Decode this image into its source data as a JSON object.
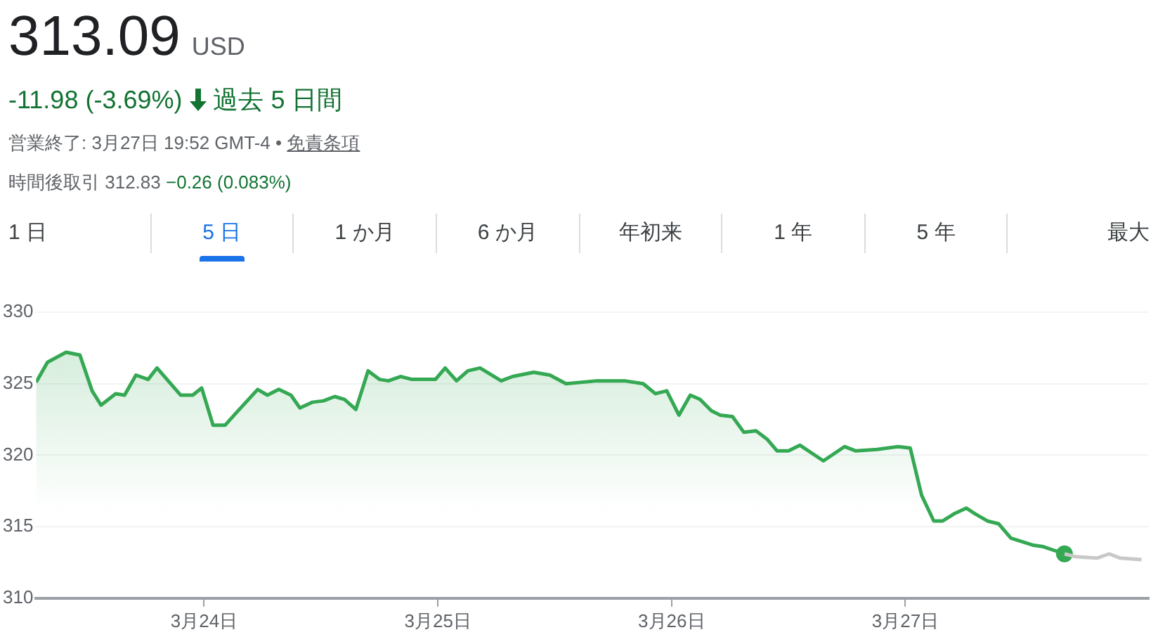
{
  "chart_data": {
    "type": "area",
    "title": "313.09",
    "annotations": [
      "USD",
      "-11.98 (-3.69%)",
      "過去 5 日間",
      "営業終了: 3月27日 19:52 GMT-4 •",
      "免責条項",
      "時間後取引 312.83",
      "−0.26 (0.083%)",
      "1 日",
      "5 日",
      "1 か月",
      "6 か月",
      "年初来",
      "1 年",
      "5 年",
      "最大"
    ],
    "xlim": [
      "--03-23T06:45",
      "--03-28T01:00"
    ],
    "xticks": [
      {
        "value": "--03-24",
        "label": "3月24日"
      },
      {
        "value": "--03-25",
        "label": "3月25日"
      },
      {
        "value": "--03-26",
        "label": "3月26日"
      },
      {
        "value": "--03-27",
        "label": "3月27日"
      }
    ],
    "ylim": [
      310,
      330
    ],
    "yticks": [
      310,
      315,
      320,
      325,
      330
    ],
    "grid": "y",
    "legend": false,
    "series": [
      {
        "color": "#34a853",
        "x": [
          "--03-23T06:45",
          "--03-23T07:55",
          "--03-23T09:50",
          "--03-23T11:15",
          "--03-23T12:30",
          "--03-23T13:25",
          "--03-23T14:55",
          "--03-23T15:50",
          "--03-23T17:00",
          "--03-23T18:15",
          "--03-23T19:10",
          "--03-23T21:35",
          "--03-23T22:50",
          "--03-23T23:45",
          "--03-24T00:55",
          "--03-24T02:10",
          "--03-24T03:05",
          "--03-24T05:30",
          "--03-24T06:30",
          "--03-24T07:40",
          "--03-24T08:55",
          "--03-24T09:50",
          "--03-24T11:05",
          "--03-24T12:15",
          "--03-24T13:25",
          "--03-24T14:25",
          "--03-24T15:35",
          "--03-24T16:50",
          "--03-24T18:00",
          "--03-24T18:55",
          "--03-24T20:10",
          "--03-24T21:20",
          "--03-24T23:45",
          "--03-25T00:45",
          "--03-25T01:55",
          "--03-25T03:05",
          "--03-25T04:20",
          "--03-25T06:30",
          "--03-25T07:40",
          "--03-25T09:50",
          "--03-25T11:30",
          "--03-25T13:10",
          "--03-25T16:20",
          "--03-25T19:10",
          "--03-25T21:05",
          "--03-25T22:20",
          "--03-25T23:30",
          "--03-26T00:45",
          "--03-26T01:55",
          "--03-26T02:55",
          "--03-26T04:05",
          "--03-26T05:00",
          "--03-26T06:15",
          "--03-26T07:25",
          "--03-26T08:40",
          "--03-26T09:50",
          "--03-26T10:50",
          "--03-26T12:00",
          "--03-26T13:10",
          "--03-26T15:35",
          "--03-26T17:45",
          "--03-26T18:55",
          "--03-26T21:05",
          "--03-26T23:15",
          "--03-27T00:30",
          "--03-27T01:40",
          "--03-27T02:55",
          "--03-27T03:50",
          "--03-27T05:00",
          "--03-27T06:15",
          "--03-27T07:10",
          "--03-27T08:25",
          "--03-27T09:35",
          "--03-27T10:50",
          "--03-27T13:10",
          "--03-27T14:10",
          "--03-27T16:20"
        ],
        "values": [
          325.1,
          326.5,
          327.2,
          327.0,
          324.5,
          323.5,
          324.3,
          324.2,
          325.6,
          325.3,
          326.1,
          324.2,
          324.2,
          324.7,
          322.1,
          322.1,
          322.8,
          324.6,
          324.2,
          324.6,
          324.2,
          323.3,
          323.7,
          323.8,
          324.1,
          323.9,
          323.2,
          325.9,
          325.3,
          325.2,
          325.5,
          325.3,
          325.3,
          326.1,
          325.2,
          325.9,
          326.1,
          325.2,
          325.5,
          325.8,
          325.6,
          325.0,
          325.2,
          325.2,
          325.0,
          324.3,
          324.5,
          322.8,
          324.2,
          323.9,
          323.1,
          322.8,
          322.7,
          321.6,
          321.7,
          321.1,
          320.3,
          320.3,
          320.7,
          319.6,
          320.6,
          320.3,
          320.4,
          320.6,
          320.5,
          317.2,
          315.4,
          315.4,
          315.9,
          316.3,
          315.9,
          315.4,
          315.2,
          314.2,
          313.7,
          313.6,
          313.1
        ]
      },
      {
        "type": "line",
        "color": "#c8c8c8",
        "x": [
          "--03-27T16:20",
          "--03-27T17:30",
          "--03-27T19:40",
          "--03-27T20:55",
          "--03-27T22:05",
          "--03-28T00:15"
        ],
        "values": [
          313.1,
          312.9,
          312.8,
          313.1,
          312.8,
          312.7
        ]
      },
      {
        "type": "scatter",
        "color": "#34a853",
        "marker": "circle",
        "x": [
          "--03-27T16:20"
        ],
        "values": [
          313.1
        ]
      }
    ]
  }
}
